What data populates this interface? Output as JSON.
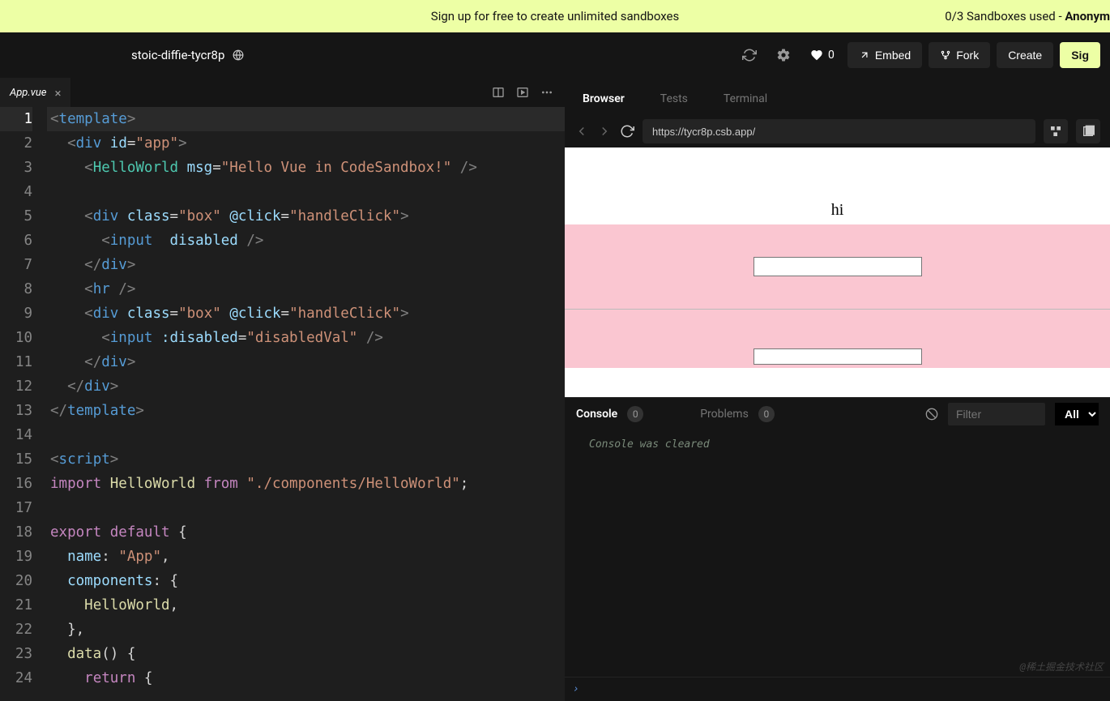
{
  "banner": {
    "center_text": "Sign up for free to create unlimited sandboxes",
    "right_prefix": "0/3 Sandboxes used - ",
    "right_strong": "Anonym"
  },
  "toolbar": {
    "project_name": "stoic-diffie-tycr8p",
    "like_count": "0",
    "embed_label": "Embed",
    "fork_label": "Fork",
    "create_label": "Create",
    "signin_label": "Sig"
  },
  "editor": {
    "tab_filename": "App.vue",
    "lines": [
      [
        [
          "br",
          "<"
        ],
        [
          "tag",
          "template"
        ],
        [
          "br",
          ">"
        ]
      ],
      [
        [
          "pun",
          "  "
        ],
        [
          "br",
          "<"
        ],
        [
          "tag",
          "div"
        ],
        [
          "pun",
          " "
        ],
        [
          "attr",
          "id"
        ],
        [
          "pun",
          "="
        ],
        [
          "str",
          "\"app\""
        ],
        [
          "br",
          ">"
        ]
      ],
      [
        [
          "pun",
          "    "
        ],
        [
          "br",
          "<"
        ],
        [
          "comp",
          "HelloWorld"
        ],
        [
          "pun",
          " "
        ],
        [
          "attr",
          "msg"
        ],
        [
          "pun",
          "="
        ],
        [
          "str",
          "\"Hello Vue in CodeSandbox!\""
        ],
        [
          "pun",
          " "
        ],
        [
          "br",
          "/>"
        ]
      ],
      [
        [
          "pun",
          ""
        ]
      ],
      [
        [
          "pun",
          "    "
        ],
        [
          "br",
          "<"
        ],
        [
          "tag",
          "div"
        ],
        [
          "pun",
          " "
        ],
        [
          "attr",
          "class"
        ],
        [
          "pun",
          "="
        ],
        [
          "str",
          "\"box\""
        ],
        [
          "pun",
          " "
        ],
        [
          "attr",
          "@click"
        ],
        [
          "pun",
          "="
        ],
        [
          "str",
          "\"handleClick\""
        ],
        [
          "br",
          ">"
        ]
      ],
      [
        [
          "pun",
          "      "
        ],
        [
          "br",
          "<"
        ],
        [
          "tag",
          "input"
        ],
        [
          "pun",
          "  "
        ],
        [
          "attr",
          "disabled"
        ],
        [
          "pun",
          " "
        ],
        [
          "br",
          "/>"
        ]
      ],
      [
        [
          "pun",
          "    "
        ],
        [
          "br",
          "</"
        ],
        [
          "tag",
          "div"
        ],
        [
          "br",
          ">"
        ]
      ],
      [
        [
          "pun",
          "    "
        ],
        [
          "br",
          "<"
        ],
        [
          "tag",
          "hr"
        ],
        [
          "pun",
          " "
        ],
        [
          "br",
          "/>"
        ]
      ],
      [
        [
          "pun",
          "    "
        ],
        [
          "br",
          "<"
        ],
        [
          "tag",
          "div"
        ],
        [
          "pun",
          " "
        ],
        [
          "attr",
          "class"
        ],
        [
          "pun",
          "="
        ],
        [
          "str",
          "\"box\""
        ],
        [
          "pun",
          " "
        ],
        [
          "attr",
          "@click"
        ],
        [
          "pun",
          "="
        ],
        [
          "str",
          "\"handleClick\""
        ],
        [
          "br",
          ">"
        ]
      ],
      [
        [
          "pun",
          "      "
        ],
        [
          "br",
          "<"
        ],
        [
          "tag",
          "input"
        ],
        [
          "pun",
          " "
        ],
        [
          "attr",
          ":disabled"
        ],
        [
          "pun",
          "="
        ],
        [
          "str",
          "\"disabledVal\""
        ],
        [
          "pun",
          " "
        ],
        [
          "br",
          "/>"
        ]
      ],
      [
        [
          "pun",
          "    "
        ],
        [
          "br",
          "</"
        ],
        [
          "tag",
          "div"
        ],
        [
          "br",
          ">"
        ]
      ],
      [
        [
          "pun",
          "  "
        ],
        [
          "br",
          "</"
        ],
        [
          "tag",
          "div"
        ],
        [
          "br",
          ">"
        ]
      ],
      [
        [
          "br",
          "</"
        ],
        [
          "tag",
          "template"
        ],
        [
          "br",
          ">"
        ]
      ],
      [
        [
          "pun",
          ""
        ]
      ],
      [
        [
          "br",
          "<"
        ],
        [
          "tag",
          "script"
        ],
        [
          "br",
          ">"
        ]
      ],
      [
        [
          "kw",
          "import"
        ],
        [
          "pun",
          " "
        ],
        [
          "id",
          "HelloWorld"
        ],
        [
          "pun",
          " "
        ],
        [
          "kw",
          "from"
        ],
        [
          "pun",
          " "
        ],
        [
          "str",
          "\"./components/HelloWorld\""
        ],
        [
          "pun",
          ";"
        ]
      ],
      [
        [
          "pun",
          ""
        ]
      ],
      [
        [
          "kw",
          "export"
        ],
        [
          "pun",
          " "
        ],
        [
          "kw",
          "default"
        ],
        [
          "pun",
          " {"
        ]
      ],
      [
        [
          "pun",
          "  "
        ],
        [
          "attr",
          "name"
        ],
        [
          "pun",
          ": "
        ],
        [
          "str",
          "\"App\""
        ],
        [
          "pun",
          ","
        ]
      ],
      [
        [
          "pun",
          "  "
        ],
        [
          "attr",
          "components"
        ],
        [
          "pun",
          ": {"
        ]
      ],
      [
        [
          "pun",
          "    "
        ],
        [
          "id",
          "HelloWorld"
        ],
        [
          "pun",
          ","
        ]
      ],
      [
        [
          "pun",
          "  },"
        ]
      ],
      [
        [
          "pun",
          "  "
        ],
        [
          "id",
          "data"
        ],
        [
          "pun",
          "() {"
        ]
      ],
      [
        [
          "pun",
          "    "
        ],
        [
          "kw",
          "return"
        ],
        [
          "pun",
          " {"
        ]
      ]
    ],
    "active_line": 1
  },
  "devtools": {
    "tabs": [
      "Browser",
      "Tests",
      "Terminal"
    ],
    "active_tab": 0,
    "url": "https://tycr8p.csb.app/"
  },
  "preview": {
    "heading": "hi",
    "box_bg": "#fac6d1"
  },
  "console": {
    "console_label": "Console",
    "console_count": "0",
    "problems_label": "Problems",
    "problems_count": "0",
    "filter_placeholder": "Filter",
    "level": "All",
    "message": "Console was cleared",
    "prompt": "›"
  },
  "watermark": "@稀土掘金技术社区"
}
